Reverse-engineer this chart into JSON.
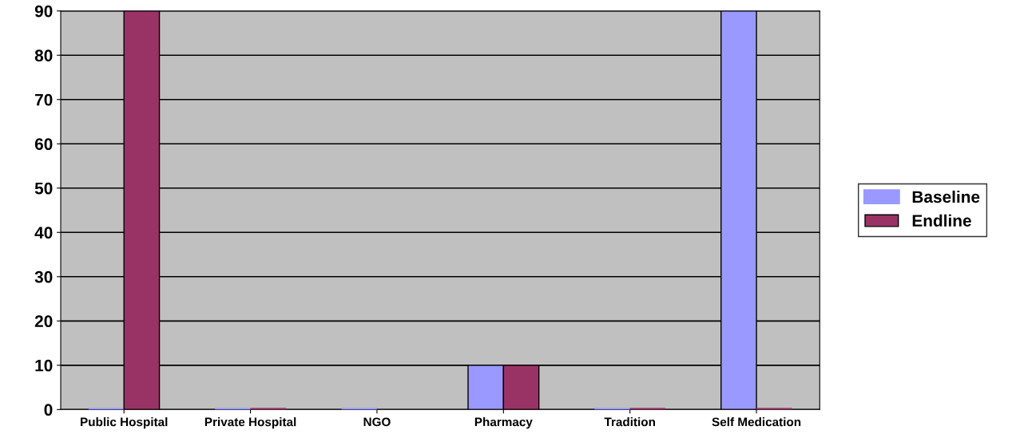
{
  "chart_data": {
    "type": "bar",
    "categories": [
      "Public Hospital",
      "Private Hospital",
      "NGO",
      "Pharmacy",
      "Tradition",
      "Self Medication"
    ],
    "series": [
      {
        "name": "Baseline",
        "color": "#9999ff",
        "values": [
          0,
          0,
          0,
          10,
          0,
          90
        ]
      },
      {
        "name": "Endline",
        "color": "#993366",
        "values": [
          90,
          0,
          null,
          10,
          0,
          0
        ]
      }
    ],
    "ylim": [
      0,
      90
    ],
    "yticks": [
      0,
      10,
      20,
      30,
      40,
      50,
      60,
      70,
      80,
      90
    ],
    "grid": "y",
    "legend": "right"
  }
}
